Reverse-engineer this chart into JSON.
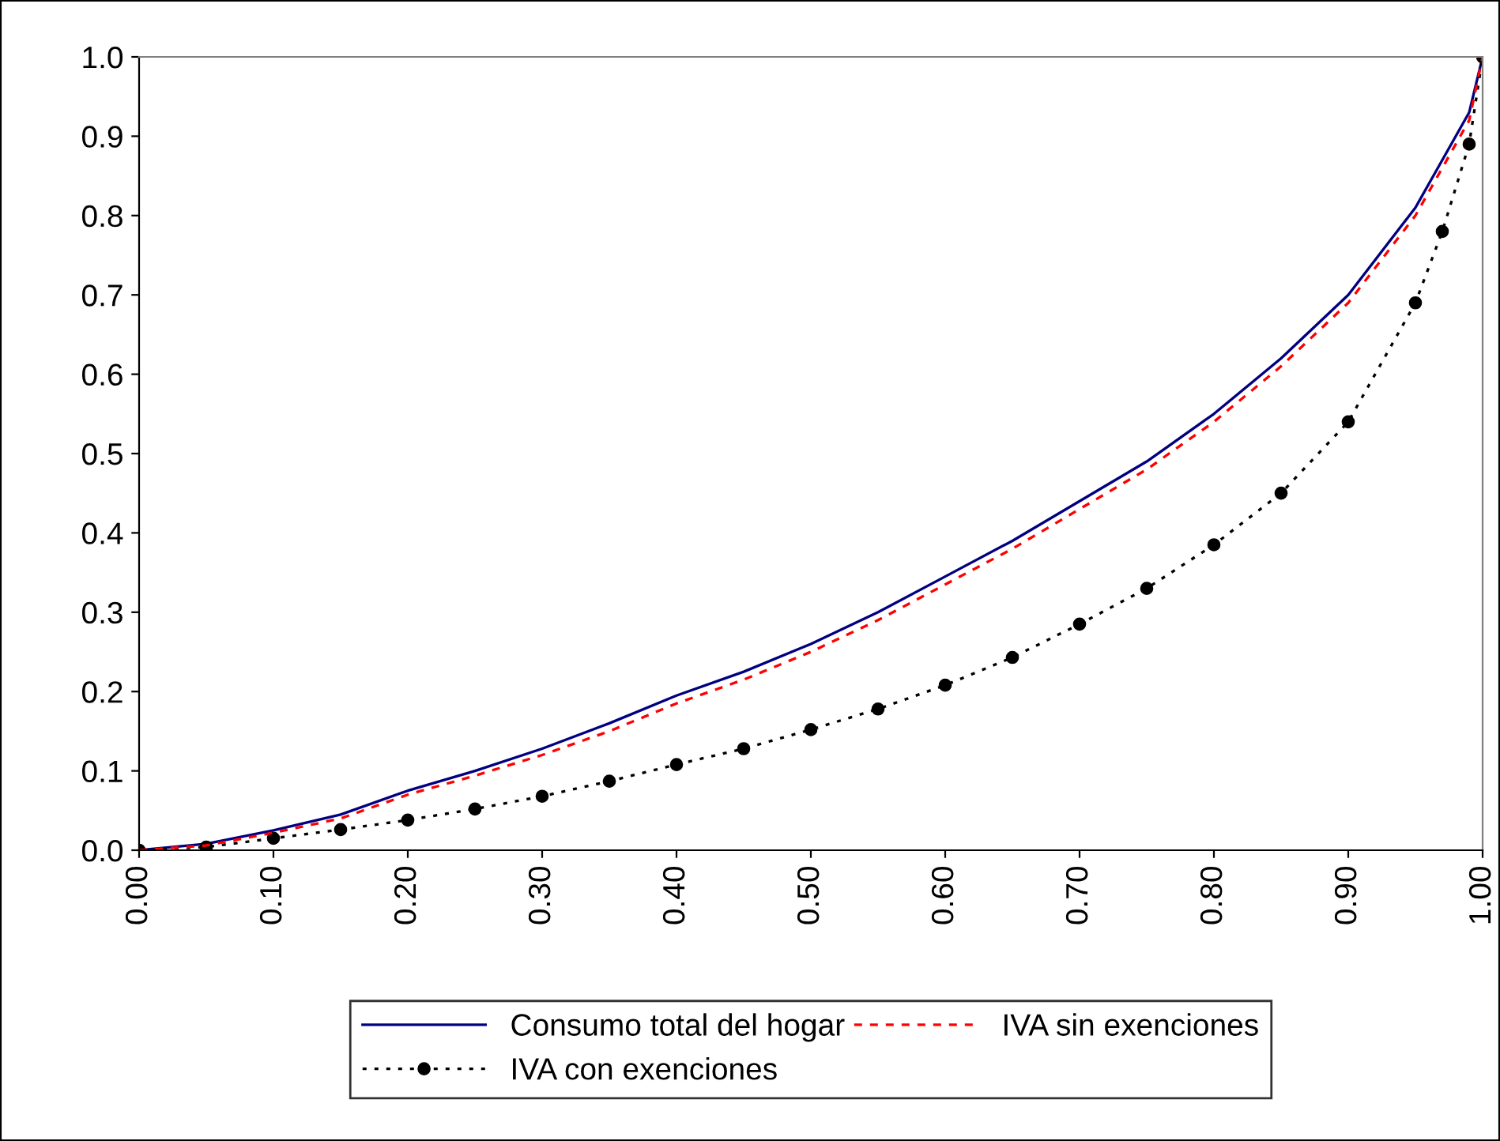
{
  "chart_data": {
    "type": "line",
    "x": [
      0,
      0.05,
      0.1,
      0.15,
      0.2,
      0.25,
      0.3,
      0.35,
      0.4,
      0.45,
      0.5,
      0.55,
      0.6,
      0.65,
      0.7,
      0.75,
      0.8,
      0.85,
      0.9,
      0.95,
      0.97,
      0.99,
      1.0
    ],
    "series": [
      {
        "name": "Consumo total del hogar",
        "color": "#000080",
        "line_style": "solid",
        "marker": "none",
        "values": [
          0,
          0.008,
          0.025,
          0.045,
          0.075,
          0.1,
          0.128,
          0.16,
          0.195,
          0.225,
          0.26,
          0.3,
          0.345,
          0.39,
          0.44,
          0.49,
          0.55,
          0.62,
          0.7,
          0.81,
          0.87,
          0.93,
          1.0
        ]
      },
      {
        "name": "IVA con exenciones",
        "color": "#000000",
        "line_style": "dotted",
        "marker": "circle",
        "values": [
          0,
          0.004,
          0.015,
          0.026,
          0.038,
          0.052,
          0.068,
          0.087,
          0.108,
          0.128,
          0.152,
          0.178,
          0.208,
          0.243,
          0.285,
          0.33,
          0.385,
          0.45,
          0.54,
          0.69,
          0.78,
          0.89,
          1.0
        ]
      },
      {
        "name": "IVA sin exenciones",
        "color": "#ff0000",
        "line_style": "dashed",
        "marker": "none",
        "values": [
          0,
          0.006,
          0.022,
          0.04,
          0.07,
          0.094,
          0.12,
          0.15,
          0.185,
          0.215,
          0.25,
          0.29,
          0.335,
          0.38,
          0.43,
          0.48,
          0.54,
          0.61,
          0.69,
          0.8,
          0.86,
          0.92,
          1.0
        ]
      }
    ],
    "xlim": [
      0,
      1.0
    ],
    "xticks": [
      {
        "value": 0,
        "label": "0.00"
      },
      {
        "value": 0.1,
        "label": "0.10"
      },
      {
        "value": 0.2,
        "label": "0.20"
      },
      {
        "value": 0.3,
        "label": "0.30"
      },
      {
        "value": 0.4,
        "label": "0.40"
      },
      {
        "value": 0.5,
        "label": "0.50"
      },
      {
        "value": 0.6,
        "label": "0.60"
      },
      {
        "value": 0.7,
        "label": "0.70"
      },
      {
        "value": 0.8,
        "label": "0.80"
      },
      {
        "value": 0.9,
        "label": "0.90"
      },
      {
        "value": 1.0,
        "label": "1.00"
      }
    ],
    "ylim": [
      0,
      1.0
    ],
    "yticks": [
      {
        "value": 0,
        "label": "0.0"
      },
      {
        "value": 0.1,
        "label": "0.1"
      },
      {
        "value": 0.2,
        "label": "0.2"
      },
      {
        "value": 0.3,
        "label": "0.3"
      },
      {
        "value": 0.4,
        "label": "0.4"
      },
      {
        "value": 0.5,
        "label": "0.5"
      },
      {
        "value": 0.6,
        "label": "0.6"
      },
      {
        "value": 0.7,
        "label": "0.7"
      },
      {
        "value": 0.8,
        "label": "0.8"
      },
      {
        "value": 0.9,
        "label": "0.9"
      },
      {
        "value": 1.0,
        "label": "1.0"
      }
    ],
    "grid": false,
    "legend": "bottom"
  }
}
